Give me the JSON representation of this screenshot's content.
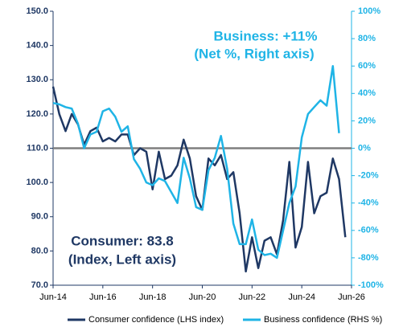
{
  "chart_data": {
    "type": "line",
    "annotations": [
      "Business: +11%",
      "(Net %, Right axis)",
      "Consumer: 83.8",
      "(Index, Left axis)"
    ],
    "x": [
      "2014-06",
      "2014-09",
      "2014-12",
      "2015-03",
      "2015-06",
      "2015-09",
      "2015-12",
      "2016-03",
      "2016-06",
      "2016-09",
      "2016-12",
      "2017-03",
      "2017-06",
      "2017-09",
      "2017-12",
      "2018-03",
      "2018-06",
      "2018-09",
      "2018-12",
      "2019-03",
      "2019-06",
      "2019-09",
      "2019-12",
      "2020-03",
      "2020-06",
      "2020-09",
      "2020-12",
      "2021-03",
      "2021-06",
      "2021-09",
      "2021-12",
      "2022-03",
      "2022-06",
      "2022-09",
      "2022-12",
      "2023-03",
      "2023-06",
      "2023-09",
      "2023-12",
      "2024-03",
      "2024-06",
      "2024-09",
      "2024-12",
      "2025-03",
      "2025-06",
      "2025-09",
      "2025-12",
      "2026-03"
    ],
    "series": [
      {
        "name": "Consumer confidence (LHS index)",
        "color": "#1f3864",
        "values": [
          128,
          120,
          115,
          120,
          117,
          111,
          115,
          116,
          112,
          113,
          112,
          114,
          114,
          108,
          110,
          109,
          98,
          109,
          101,
          102,
          105,
          112.5,
          107,
          96,
          92,
          107,
          105,
          108,
          101,
          103,
          91,
          74,
          84,
          75,
          83,
          84,
          79,
          89,
          106,
          81,
          87,
          106,
          91,
          96,
          97,
          107,
          101,
          84
        ]
      },
      {
        "name": "Business confidence (RHS %)",
        "color": "#1fb4e6",
        "axis": "y2",
        "values": [
          33,
          32,
          30,
          29,
          18,
          0,
          10,
          12,
          27,
          29,
          23,
          12,
          16,
          -8,
          -15,
          -25,
          -27,
          -22,
          -24,
          -32,
          -40,
          -7,
          -22,
          -43,
          -45,
          -16,
          -7,
          9,
          -15,
          -55,
          -70,
          -70,
          -52,
          -74,
          -78,
          -77,
          -80,
          -60,
          -40,
          -28,
          8,
          25,
          30,
          35,
          31,
          60,
          11,
          null
        ]
      }
    ],
    "xlim": [
      "2014-06",
      "2026-06"
    ],
    "xticks": [
      {
        "value": "2014-06",
        "label": "Jun-14"
      },
      {
        "value": "2016-06",
        "label": "Jun-16"
      },
      {
        "value": "2018-06",
        "label": "Jun-18"
      },
      {
        "value": "2020-06",
        "label": "Jun-20"
      },
      {
        "value": "2022-06",
        "label": "Jun-22"
      },
      {
        "value": "2024-06",
        "label": "Jun-24"
      },
      {
        "value": "2026-06",
        "label": "Jun-26"
      }
    ],
    "ylim": [
      70,
      150
    ],
    "yticks": [
      {
        "value": 70,
        "label": "70.0"
      },
      {
        "value": 80,
        "label": "80.0"
      },
      {
        "value": 90,
        "label": "90.0"
      },
      {
        "value": 100,
        "label": "100.0"
      },
      {
        "value": 110,
        "label": "110.0"
      },
      {
        "value": 120,
        "label": "120.0"
      },
      {
        "value": 130,
        "label": "130.0"
      },
      {
        "value": 140,
        "label": "140.0"
      },
      {
        "value": 150,
        "label": "150.0"
      }
    ],
    "y2lim": [
      -100,
      100
    ],
    "y2ticks": [
      {
        "value": -100,
        "label": "-100%"
      },
      {
        "value": -80,
        "label": "-80%"
      },
      {
        "value": -60,
        "label": "-60%"
      },
      {
        "value": -40,
        "label": "-40%"
      },
      {
        "value": -20,
        "label": "-20%"
      },
      {
        "value": 0,
        "label": "0%"
      },
      {
        "value": 20,
        "label": "20%"
      },
      {
        "value": 40,
        "label": "40%"
      },
      {
        "value": 60,
        "label": "60%"
      },
      {
        "value": 80,
        "label": "80%"
      },
      {
        "value": 100,
        "label": "100%"
      }
    ],
    "hline": 110,
    "legend": "bottom"
  }
}
